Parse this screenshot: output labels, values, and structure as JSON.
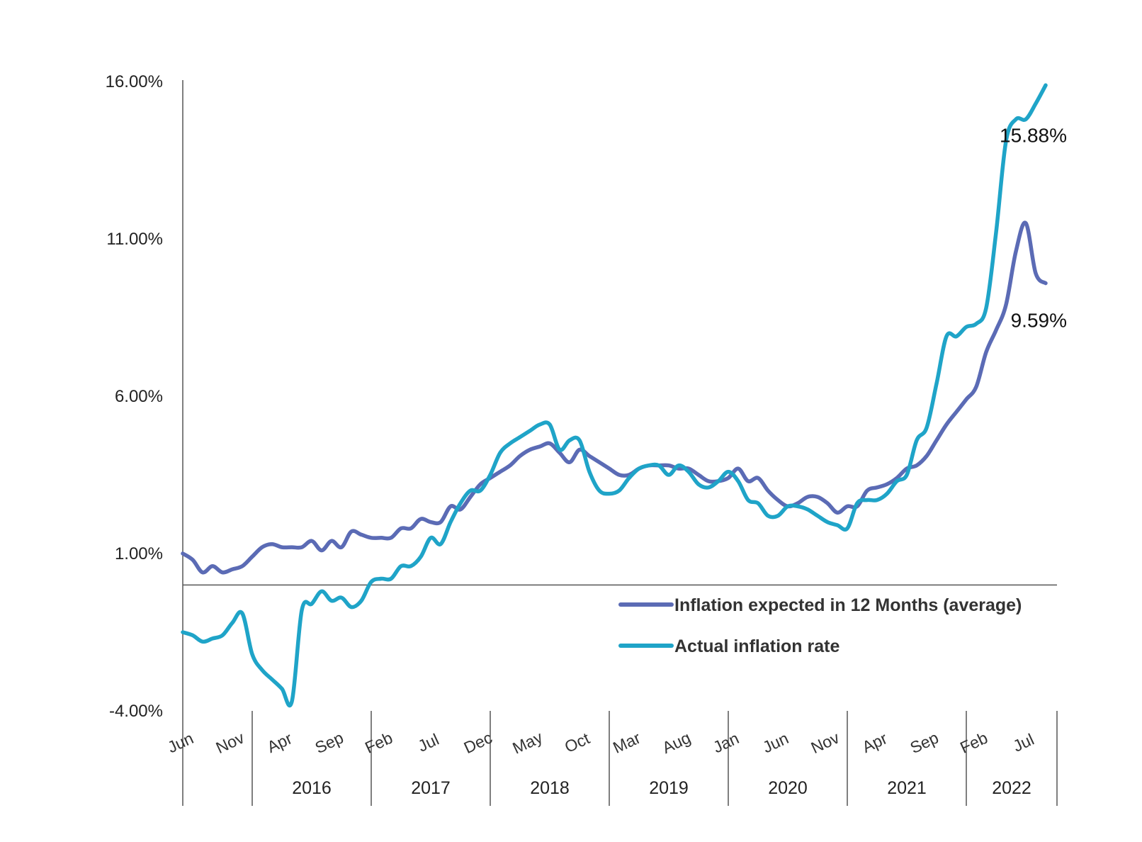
{
  "chart_data": {
    "type": "line",
    "ylim": [
      -4,
      16
    ],
    "y_ticks": [
      {
        "value": 16,
        "label": "16.00%"
      },
      {
        "value": 11,
        "label": "11.00%"
      },
      {
        "value": 6,
        "label": "6.00%"
      },
      {
        "value": 1,
        "label": "1.00%"
      },
      {
        "value": -4,
        "label": "-4.00%"
      }
    ],
    "x_start": "2015-06",
    "x_end": "2022-10",
    "x_month_ticks": [
      {
        "date": "2015-06",
        "label": "Jun"
      },
      {
        "date": "2015-11",
        "label": "Nov"
      },
      {
        "date": "2016-04",
        "label": "Apr"
      },
      {
        "date": "2016-09",
        "label": "Sep"
      },
      {
        "date": "2017-02",
        "label": "Feb"
      },
      {
        "date": "2017-07",
        "label": "Jul"
      },
      {
        "date": "2017-12",
        "label": "Dec"
      },
      {
        "date": "2018-05",
        "label": "May"
      },
      {
        "date": "2018-10",
        "label": "Oct"
      },
      {
        "date": "2019-03",
        "label": "Mar"
      },
      {
        "date": "2019-08",
        "label": "Aug"
      },
      {
        "date": "2020-01",
        "label": "Jan"
      },
      {
        "date": "2020-06",
        "label": "Jun"
      },
      {
        "date": "2020-11",
        "label": "Nov"
      },
      {
        "date": "2021-04",
        "label": "Apr"
      },
      {
        "date": "2021-09",
        "label": "Sep"
      },
      {
        "date": "2022-02",
        "label": "Feb"
      },
      {
        "date": "2022-07",
        "label": "Jul"
      }
    ],
    "x_year_groups": [
      {
        "label": "2016"
      },
      {
        "label": "2017"
      },
      {
        "label": "2018"
      },
      {
        "label": "2019"
      },
      {
        "label": "2020"
      },
      {
        "label": "2021"
      },
      {
        "label": "2022"
      }
    ],
    "legend_position": "bottom-right",
    "grid": false,
    "series": [
      {
        "name": "Inflation expected in 12 Months (average)",
        "color": "#5b6bb5",
        "end_label": "9.59%",
        "points": [
          [
            "2015-06",
            1.0
          ],
          [
            "2015-07",
            0.8
          ],
          [
            "2015-08",
            0.4
          ],
          [
            "2015-09",
            0.6
          ],
          [
            "2015-10",
            0.4
          ],
          [
            "2015-11",
            0.5
          ],
          [
            "2015-12",
            0.6
          ],
          [
            "2016-01",
            0.9
          ],
          [
            "2016-02",
            1.2
          ],
          [
            "2016-03",
            1.3
          ],
          [
            "2016-04",
            1.2
          ],
          [
            "2016-05",
            1.2
          ],
          [
            "2016-06",
            1.2
          ],
          [
            "2016-07",
            1.4
          ],
          [
            "2016-08",
            1.1
          ],
          [
            "2016-09",
            1.4
          ],
          [
            "2016-10",
            1.2
          ],
          [
            "2016-11",
            1.7
          ],
          [
            "2016-12",
            1.6
          ],
          [
            "2017-01",
            1.5
          ],
          [
            "2017-02",
            1.5
          ],
          [
            "2017-03",
            1.5
          ],
          [
            "2017-04",
            1.8
          ],
          [
            "2017-05",
            1.8
          ],
          [
            "2017-06",
            2.1
          ],
          [
            "2017-07",
            2.0
          ],
          [
            "2017-08",
            2.0
          ],
          [
            "2017-09",
            2.5
          ],
          [
            "2017-10",
            2.4
          ],
          [
            "2017-11",
            2.8
          ],
          [
            "2017-12",
            3.2
          ],
          [
            "2018-01",
            3.4
          ],
          [
            "2018-02",
            3.6
          ],
          [
            "2018-03",
            3.8
          ],
          [
            "2018-04",
            4.1
          ],
          [
            "2018-05",
            4.3
          ],
          [
            "2018-06",
            4.4
          ],
          [
            "2018-07",
            4.5
          ],
          [
            "2018-08",
            4.2
          ],
          [
            "2018-09",
            3.9
          ],
          [
            "2018-10",
            4.3
          ],
          [
            "2018-11",
            4.1
          ],
          [
            "2018-12",
            3.9
          ],
          [
            "2019-01",
            3.7
          ],
          [
            "2019-02",
            3.5
          ],
          [
            "2019-03",
            3.5
          ],
          [
            "2019-04",
            3.7
          ],
          [
            "2019-05",
            3.8
          ],
          [
            "2019-06",
            3.8
          ],
          [
            "2019-07",
            3.8
          ],
          [
            "2019-08",
            3.7
          ],
          [
            "2019-09",
            3.7
          ],
          [
            "2019-10",
            3.5
          ],
          [
            "2019-11",
            3.3
          ],
          [
            "2019-12",
            3.3
          ],
          [
            "2020-01",
            3.4
          ],
          [
            "2020-02",
            3.7
          ],
          [
            "2020-03",
            3.3
          ],
          [
            "2020-04",
            3.4
          ],
          [
            "2020-05",
            3.0
          ],
          [
            "2020-06",
            2.7
          ],
          [
            "2020-07",
            2.5
          ],
          [
            "2020-08",
            2.6
          ],
          [
            "2020-09",
            2.8
          ],
          [
            "2020-10",
            2.8
          ],
          [
            "2020-11",
            2.6
          ],
          [
            "2020-12",
            2.3
          ],
          [
            "2021-01",
            2.5
          ],
          [
            "2021-02",
            2.5
          ],
          [
            "2021-03",
            3.0
          ],
          [
            "2021-04",
            3.1
          ],
          [
            "2021-05",
            3.2
          ],
          [
            "2021-06",
            3.4
          ],
          [
            "2021-07",
            3.7
          ],
          [
            "2021-08",
            3.8
          ],
          [
            "2021-09",
            4.1
          ],
          [
            "2021-10",
            4.6
          ],
          [
            "2021-11",
            5.1
          ],
          [
            "2021-12",
            5.5
          ],
          [
            "2022-01",
            5.9
          ],
          [
            "2022-02",
            6.3
          ],
          [
            "2022-03",
            7.4
          ],
          [
            "2022-04",
            8.1
          ],
          [
            "2022-05",
            8.9
          ],
          [
            "2022-06",
            10.6
          ],
          [
            "2022-07",
            11.5
          ],
          [
            "2022-08",
            9.9
          ],
          [
            "2022-09",
            9.59
          ]
        ]
      },
      {
        "name": "Actual inflation rate",
        "color": "#1fa4c8",
        "end_label": "15.88%",
        "points": [
          [
            "2015-06",
            -1.5
          ],
          [
            "2015-07",
            -1.6
          ],
          [
            "2015-08",
            -1.8
          ],
          [
            "2015-09",
            -1.7
          ],
          [
            "2015-10",
            -1.6
          ],
          [
            "2015-11",
            -1.2
          ],
          [
            "2015-12",
            -0.9
          ],
          [
            "2016-01",
            -2.2
          ],
          [
            "2016-02",
            -2.7
          ],
          [
            "2016-03",
            -3.0
          ],
          [
            "2016-04",
            -3.3
          ],
          [
            "2016-05",
            -3.7
          ],
          [
            "2016-06",
            -0.8
          ],
          [
            "2016-07",
            -0.6
          ],
          [
            "2016-08",
            -0.2
          ],
          [
            "2016-09",
            -0.5
          ],
          [
            "2016-10",
            -0.4
          ],
          [
            "2016-11",
            -0.7
          ],
          [
            "2016-12",
            -0.5
          ],
          [
            "2017-01",
            0.1
          ],
          [
            "2017-02",
            0.2
          ],
          [
            "2017-03",
            0.2
          ],
          [
            "2017-04",
            0.6
          ],
          [
            "2017-05",
            0.6
          ],
          [
            "2017-06",
            0.9
          ],
          [
            "2017-07",
            1.5
          ],
          [
            "2017-08",
            1.3
          ],
          [
            "2017-09",
            2.0
          ],
          [
            "2017-10",
            2.6
          ],
          [
            "2017-11",
            3.0
          ],
          [
            "2017-12",
            3.0
          ],
          [
            "2018-01",
            3.5
          ],
          [
            "2018-02",
            4.2
          ],
          [
            "2018-03",
            4.5
          ],
          [
            "2018-04",
            4.7
          ],
          [
            "2018-05",
            4.9
          ],
          [
            "2018-06",
            5.1
          ],
          [
            "2018-07",
            5.1
          ],
          [
            "2018-08",
            4.3
          ],
          [
            "2018-09",
            4.6
          ],
          [
            "2018-10",
            4.6
          ],
          [
            "2018-11",
            3.6
          ],
          [
            "2018-12",
            3.0
          ],
          [
            "2019-01",
            2.9
          ],
          [
            "2019-02",
            3.0
          ],
          [
            "2019-03",
            3.4
          ],
          [
            "2019-04",
            3.7
          ],
          [
            "2019-05",
            3.8
          ],
          [
            "2019-06",
            3.8
          ],
          [
            "2019-07",
            3.5
          ],
          [
            "2019-08",
            3.8
          ],
          [
            "2019-09",
            3.6
          ],
          [
            "2019-10",
            3.2
          ],
          [
            "2019-11",
            3.1
          ],
          [
            "2019-12",
            3.3
          ],
          [
            "2020-01",
            3.6
          ],
          [
            "2020-02",
            3.3
          ],
          [
            "2020-03",
            2.7
          ],
          [
            "2020-04",
            2.6
          ],
          [
            "2020-05",
            2.2
          ],
          [
            "2020-06",
            2.2
          ],
          [
            "2020-07",
            2.5
          ],
          [
            "2020-08",
            2.5
          ],
          [
            "2020-09",
            2.4
          ],
          [
            "2020-10",
            2.2
          ],
          [
            "2020-11",
            2.0
          ],
          [
            "2020-12",
            1.9
          ],
          [
            "2021-01",
            1.8
          ],
          [
            "2021-02",
            2.6
          ],
          [
            "2021-03",
            2.7
          ],
          [
            "2021-04",
            2.7
          ],
          [
            "2021-05",
            2.9
          ],
          [
            "2021-06",
            3.3
          ],
          [
            "2021-07",
            3.5
          ],
          [
            "2021-08",
            4.6
          ],
          [
            "2021-09",
            5.0
          ],
          [
            "2021-10",
            6.4
          ],
          [
            "2021-11",
            7.9
          ],
          [
            "2021-12",
            7.9
          ],
          [
            "2022-01",
            8.2
          ],
          [
            "2022-02",
            8.3
          ],
          [
            "2022-03",
            8.8
          ],
          [
            "2022-04",
            11.2
          ],
          [
            "2022-05",
            14.1
          ],
          [
            "2022-06",
            14.8
          ],
          [
            "2022-07",
            14.8
          ],
          [
            "2022-08",
            15.3
          ],
          [
            "2022-09",
            15.88
          ]
        ]
      }
    ]
  }
}
